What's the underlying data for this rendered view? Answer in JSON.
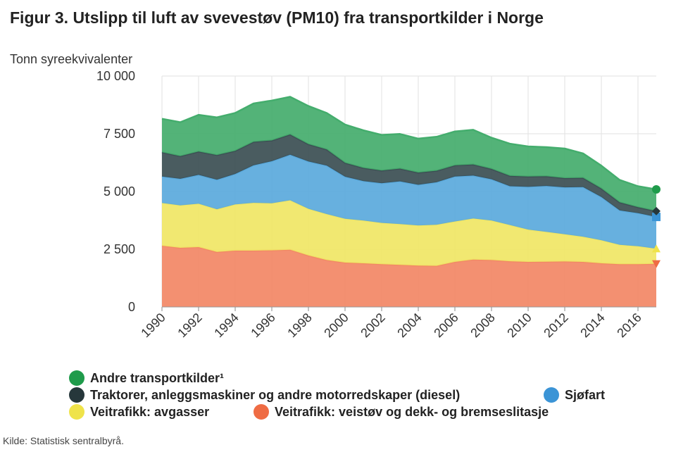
{
  "header": {
    "title": "Figur 3. Utslipp til luft av svevestøv (PM10) fra transportkilder i Norge"
  },
  "source": "Kilde: Statistisk sentralbyrå.",
  "legend": {
    "andre": "Andre transportkilder¹",
    "traktorer": "Traktorer, anleggsmaskiner og andre motorredskaper (diesel)",
    "sjofart": "Sjøfart",
    "avgasser": "Veitrafikk: avgasser",
    "veistov": "Veitrafikk: veistøv og dekk- og bremseslitasje"
  },
  "chart_data": {
    "type": "area",
    "stacked": true,
    "title": "Figur 3. Utslipp til luft av svevestøv (PM10) fra transportkilder i Norge",
    "ylabel": "Tonn syreekvivalenter",
    "xlabel": "",
    "ylim": [
      0,
      10000
    ],
    "yticks": [
      0,
      2500,
      5000,
      7500,
      10000
    ],
    "ytick_labels": [
      "0",
      "2 500",
      "5 000",
      "7 500",
      "10 000"
    ],
    "xticks": [
      1990,
      1992,
      1994,
      1996,
      1998,
      2000,
      2002,
      2004,
      2006,
      2008,
      2010,
      2012,
      2014,
      2016
    ],
    "xtick_labels": [
      "1990",
      "1992",
      "1994",
      "1996",
      "1998",
      "2000",
      "2002",
      "2004",
      "2006",
      "2008",
      "2010",
      "2012",
      "2014",
      "2016"
    ],
    "x": [
      1990,
      1991,
      1992,
      1993,
      1994,
      1995,
      1996,
      1997,
      1998,
      1999,
      2000,
      2001,
      2002,
      2003,
      2004,
      2005,
      2006,
      2007,
      2008,
      2009,
      2010,
      2011,
      2012,
      2013,
      2014,
      2015,
      2016,
      2017
    ],
    "grid": true,
    "series": [
      {
        "name": "Veitrafikk: veistøv og dekk- og bremseslitasje",
        "color": "#f28765",
        "values": [
          2650,
          2560,
          2590,
          2380,
          2440,
          2440,
          2450,
          2480,
          2230,
          2030,
          1920,
          1890,
          1850,
          1820,
          1790,
          1780,
          1950,
          2050,
          2030,
          1980,
          1950,
          1960,
          1970,
          1950,
          1890,
          1850,
          1850,
          1870
        ]
      },
      {
        "name": "Veitrafikk: avgasser",
        "color": "#f0e665",
        "values": [
          1850,
          1840,
          1880,
          1850,
          2000,
          2070,
          2040,
          2140,
          2020,
          1990,
          1900,
          1850,
          1790,
          1770,
          1740,
          1780,
          1750,
          1780,
          1710,
          1570,
          1400,
          1290,
          1180,
          1090,
          1000,
          840,
          780,
          650
        ]
      },
      {
        "name": "Sjøfart",
        "color": "#5aa9dc",
        "values": [
          1150,
          1150,
          1250,
          1280,
          1320,
          1620,
          1820,
          1970,
          2050,
          2100,
          1820,
          1710,
          1720,
          1850,
          1760,
          1840,
          1950,
          1860,
          1790,
          1680,
          1850,
          1990,
          2030,
          2150,
          1870,
          1490,
          1430,
          1380
        ]
      },
      {
        "name": "Traktorer, anleggsmaskiner og andre motorredskaper (diesel)",
        "color": "#3b4e53",
        "values": [
          1050,
          980,
          1010,
          1070,
          1000,
          1020,
          900,
          880,
          750,
          700,
          600,
          570,
          550,
          550,
          530,
          500,
          480,
          480,
          450,
          450,
          450,
          420,
          400,
          400,
          370,
          350,
          260,
          250
        ]
      },
      {
        "name": "Andre transportkilder¹",
        "color": "#44ad6d",
        "values": [
          1450,
          1470,
          1590,
          1630,
          1640,
          1660,
          1730,
          1630,
          1650,
          1580,
          1660,
          1630,
          1540,
          1500,
          1470,
          1470,
          1470,
          1500,
          1350,
          1390,
          1300,
          1260,
          1280,
          1060,
          990,
          970,
          910,
          940
        ]
      }
    ]
  }
}
